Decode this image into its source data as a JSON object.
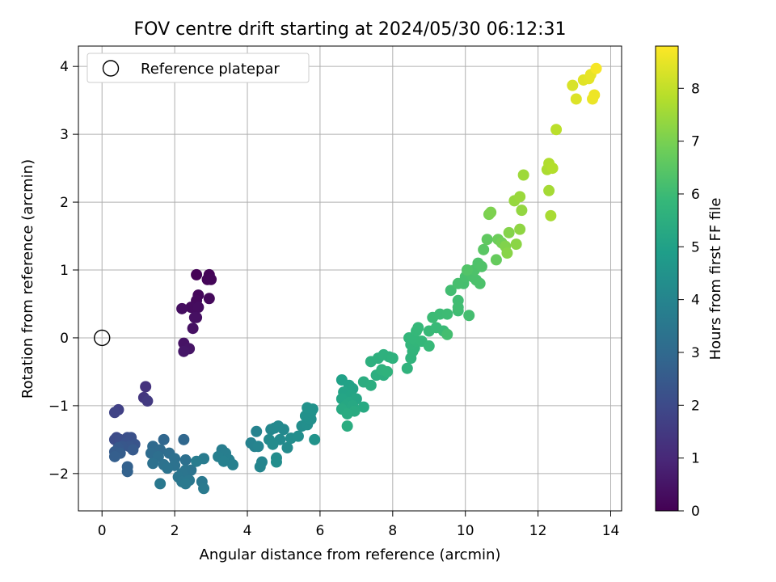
{
  "chart_data": {
    "type": "scatter",
    "title": "FOV centre drift starting at 2024/05/30 06:12:31",
    "xlabel": "Angular distance from reference (arcmin)",
    "ylabel": "Rotation from reference (arcmin)",
    "xlim": [
      -0.65,
      14.3
    ],
    "ylim": [
      -2.55,
      4.3
    ],
    "xticks": [
      0,
      2,
      4,
      6,
      8,
      10,
      12,
      14
    ],
    "yticks": [
      -2,
      -1,
      0,
      1,
      2,
      3,
      4
    ],
    "grid": true,
    "legend": {
      "position": "top-left",
      "entries": [
        "Reference platepar"
      ]
    },
    "reference_point": {
      "x": 0,
      "y": 0
    },
    "colorbar": {
      "label": "Hours from first FF file",
      "range": [
        0,
        8.8
      ],
      "ticks": [
        0,
        1,
        2,
        3,
        4,
        5,
        6,
        7,
        8
      ],
      "colormap": "viridis"
    },
    "colormap_stops": [
      "#440154",
      "#482878",
      "#3e4989",
      "#31688e",
      "#26828e",
      "#1f9e89",
      "#35b779",
      "#6ece58",
      "#b5de2b",
      "#fde725"
    ],
    "series": [
      {
        "points": [
          [
            2.6,
            0.93,
            0.05
          ],
          [
            2.95,
            0.93,
            0.08
          ],
          [
            2.9,
            0.86,
            0.1
          ],
          [
            3.0,
            0.86,
            0.12
          ],
          [
            2.65,
            0.63,
            0.18
          ],
          [
            2.95,
            0.58,
            0.2
          ],
          [
            2.6,
            0.55,
            0.22
          ],
          [
            2.55,
            0.45,
            0.25
          ],
          [
            2.45,
            0.45,
            0.28
          ],
          [
            2.65,
            0.45,
            0.3
          ],
          [
            2.2,
            0.43,
            0.33
          ],
          [
            2.6,
            0.3,
            0.35
          ],
          [
            2.55,
            0.3,
            0.38
          ],
          [
            2.5,
            0.14,
            0.4
          ],
          [
            2.25,
            -0.08,
            0.45
          ],
          [
            2.4,
            -0.16,
            0.5
          ],
          [
            2.25,
            -0.2,
            0.55
          ],
          [
            1.2,
            -0.72,
            1.3
          ],
          [
            1.15,
            -0.88,
            1.4
          ],
          [
            1.25,
            -0.93,
            1.5
          ],
          [
            0.45,
            -1.06,
            1.7
          ],
          [
            0.35,
            -1.1,
            1.8
          ],
          [
            0.4,
            -1.47,
            2.0
          ],
          [
            0.35,
            -1.5,
            2.05
          ],
          [
            0.5,
            -1.5,
            2.1
          ],
          [
            0.7,
            -1.47,
            2.15
          ],
          [
            0.8,
            -1.47,
            2.2
          ],
          [
            0.65,
            -1.55,
            2.25
          ],
          [
            0.9,
            -1.57,
            2.3
          ],
          [
            0.75,
            -1.6,
            2.35
          ],
          [
            0.55,
            -1.6,
            2.4
          ],
          [
            0.45,
            -1.62,
            2.45
          ],
          [
            0.85,
            -1.65,
            2.5
          ],
          [
            0.35,
            -1.68,
            2.55
          ],
          [
            0.5,
            -1.7,
            2.6
          ],
          [
            0.35,
            -1.75,
            2.65
          ],
          [
            0.7,
            -1.9,
            2.7
          ],
          [
            0.7,
            -1.97,
            2.75
          ],
          [
            1.7,
            -1.5,
            2.9
          ],
          [
            2.25,
            -1.5,
            2.95
          ],
          [
            1.4,
            -1.6,
            3.0
          ],
          [
            1.6,
            -1.65,
            3.05
          ],
          [
            1.35,
            -1.7,
            3.1
          ],
          [
            1.85,
            -1.7,
            3.15
          ],
          [
            1.55,
            -1.75,
            3.2
          ],
          [
            2.0,
            -1.78,
            3.22
          ],
          [
            2.3,
            -1.8,
            3.25
          ],
          [
            1.4,
            -1.85,
            3.28
          ],
          [
            1.7,
            -1.87,
            3.3
          ],
          [
            2.0,
            -1.88,
            3.32
          ],
          [
            1.8,
            -1.92,
            3.35
          ],
          [
            2.3,
            -1.95,
            3.38
          ],
          [
            2.45,
            -1.95,
            3.4
          ],
          [
            2.2,
            -2.0,
            3.42
          ],
          [
            2.1,
            -2.05,
            3.45
          ],
          [
            2.4,
            -2.1,
            3.48
          ],
          [
            2.2,
            -2.12,
            3.5
          ],
          [
            2.75,
            -2.12,
            3.52
          ],
          [
            1.6,
            -2.15,
            3.55
          ],
          [
            2.3,
            -2.15,
            3.57
          ],
          [
            2.8,
            -2.22,
            3.6
          ],
          [
            2.8,
            -1.78,
            3.65
          ],
          [
            2.6,
            -1.82,
            3.7
          ],
          [
            3.3,
            -1.65,
            3.72
          ],
          [
            3.4,
            -1.7,
            3.75
          ],
          [
            3.2,
            -1.75,
            3.78
          ],
          [
            3.5,
            -1.8,
            3.8
          ],
          [
            3.35,
            -1.82,
            3.83
          ],
          [
            3.6,
            -1.87,
            3.85
          ],
          [
            4.1,
            -1.55,
            3.9
          ],
          [
            4.2,
            -1.6,
            3.92
          ],
          [
            4.25,
            -1.38,
            3.95
          ],
          [
            4.3,
            -1.6,
            3.97
          ],
          [
            4.4,
            -1.83,
            4.0
          ],
          [
            4.35,
            -1.9,
            4.02
          ],
          [
            4.65,
            -1.35,
            4.1
          ],
          [
            4.75,
            -1.33,
            4.12
          ],
          [
            4.85,
            -1.3,
            4.14
          ],
          [
            5.0,
            -1.35,
            4.16
          ],
          [
            4.6,
            -1.5,
            4.18
          ],
          [
            4.9,
            -1.5,
            4.2
          ],
          [
            4.7,
            -1.57,
            4.22
          ],
          [
            5.1,
            -1.62,
            4.24
          ],
          [
            4.8,
            -1.77,
            4.26
          ],
          [
            4.8,
            -1.83,
            4.28
          ],
          [
            5.2,
            -1.48,
            4.3
          ],
          [
            5.4,
            -1.45,
            4.32
          ],
          [
            5.5,
            -1.3,
            4.34
          ],
          [
            5.65,
            -1.28,
            4.36
          ],
          [
            5.65,
            -1.2,
            4.38
          ],
          [
            5.75,
            -1.2,
            4.4
          ],
          [
            5.6,
            -1.15,
            4.42
          ],
          [
            5.75,
            -1.1,
            4.44
          ],
          [
            5.8,
            -1.05,
            4.46
          ],
          [
            5.65,
            -1.03,
            4.48
          ],
          [
            5.85,
            -1.5,
            4.5
          ],
          [
            6.6,
            -0.62,
            5.0
          ],
          [
            6.8,
            -0.7,
            5.03
          ],
          [
            6.9,
            -0.75,
            5.06
          ],
          [
            6.65,
            -0.8,
            5.09
          ],
          [
            6.85,
            -0.85,
            5.12
          ],
          [
            6.6,
            -0.9,
            5.15
          ],
          [
            7.0,
            -0.9,
            5.18
          ],
          [
            6.8,
            -0.95,
            5.21
          ],
          [
            6.7,
            -1.0,
            5.24
          ],
          [
            6.9,
            -1.0,
            5.27
          ],
          [
            7.2,
            -1.02,
            5.3
          ],
          [
            6.6,
            -1.05,
            5.33
          ],
          [
            6.95,
            -1.08,
            5.36
          ],
          [
            6.75,
            -1.12,
            5.39
          ],
          [
            6.75,
            -1.3,
            5.42
          ],
          [
            7.2,
            -0.65,
            5.45
          ],
          [
            7.4,
            -0.7,
            5.48
          ],
          [
            7.55,
            -0.55,
            5.5
          ],
          [
            7.75,
            -0.55,
            5.52
          ],
          [
            7.4,
            -0.35,
            5.54
          ],
          [
            7.6,
            -0.3,
            5.56
          ],
          [
            7.75,
            -0.25,
            5.58
          ],
          [
            7.9,
            -0.28,
            5.6
          ],
          [
            8.0,
            -0.3,
            5.62
          ],
          [
            7.7,
            -0.47,
            5.64
          ],
          [
            7.85,
            -0.5,
            5.66
          ],
          [
            8.4,
            -0.45,
            5.68
          ],
          [
            8.5,
            -0.3,
            5.7
          ],
          [
            8.55,
            -0.2,
            5.72
          ],
          [
            8.6,
            -0.15,
            5.74
          ],
          [
            8.5,
            -0.1,
            5.76
          ],
          [
            8.65,
            -0.05,
            5.78
          ],
          [
            8.45,
            0.0,
            5.8
          ],
          [
            8.55,
            0.0,
            5.82
          ],
          [
            8.8,
            -0.05,
            5.84
          ],
          [
            8.65,
            0.1,
            5.86
          ],
          [
            8.7,
            0.15,
            5.88
          ],
          [
            9.0,
            -0.12,
            5.9
          ],
          [
            9.0,
            0.1,
            5.92
          ],
          [
            9.2,
            0.15,
            5.94
          ],
          [
            9.4,
            0.1,
            5.96
          ],
          [
            9.1,
            0.3,
            5.98
          ],
          [
            9.3,
            0.35,
            6.0
          ],
          [
            9.5,
            0.35,
            6.02
          ],
          [
            9.8,
            0.4,
            6.04
          ],
          [
            9.8,
            0.55,
            6.06
          ],
          [
            9.8,
            0.45,
            6.08
          ],
          [
            9.6,
            0.7,
            6.1
          ],
          [
            9.5,
            0.05,
            6.12
          ],
          [
            10.1,
            0.33,
            6.14
          ],
          [
            9.95,
            0.8,
            6.16
          ],
          [
            9.8,
            0.8,
            6.18
          ],
          [
            10.0,
            0.9,
            6.2
          ],
          [
            10.1,
            0.95,
            6.22
          ],
          [
            10.2,
            0.9,
            6.24
          ],
          [
            10.3,
            0.85,
            6.26
          ],
          [
            10.4,
            0.8,
            6.28
          ],
          [
            10.25,
            1.0,
            6.3
          ],
          [
            10.35,
            1.1,
            6.32
          ],
          [
            10.45,
            1.05,
            6.34
          ],
          [
            10.05,
            1.0,
            6.36
          ],
          [
            10.5,
            1.3,
            6.5
          ],
          [
            10.6,
            1.45,
            6.6
          ],
          [
            10.85,
            1.15,
            6.7
          ],
          [
            10.9,
            1.45,
            6.8
          ],
          [
            11.0,
            1.4,
            6.9
          ],
          [
            10.65,
            1.82,
            7.0
          ],
          [
            10.7,
            1.85,
            7.05
          ],
          [
            11.1,
            1.35,
            7.1
          ],
          [
            11.2,
            1.55,
            7.15
          ],
          [
            11.15,
            1.25,
            7.2
          ],
          [
            11.4,
            1.38,
            7.25
          ],
          [
            11.5,
            1.6,
            7.3
          ],
          [
            11.55,
            1.88,
            7.35
          ],
          [
            11.35,
            2.02,
            7.4
          ],
          [
            11.5,
            2.08,
            7.45
          ],
          [
            11.6,
            2.4,
            7.5
          ],
          [
            12.3,
            2.17,
            7.6
          ],
          [
            12.35,
            1.8,
            7.65
          ],
          [
            12.25,
            2.48,
            7.7
          ],
          [
            12.3,
            2.57,
            7.75
          ],
          [
            12.4,
            2.5,
            7.8
          ],
          [
            12.5,
            3.07,
            7.9
          ],
          [
            12.95,
            3.72,
            8.3
          ],
          [
            13.05,
            3.52,
            8.35
          ],
          [
            13.25,
            3.8,
            8.4
          ],
          [
            13.4,
            3.82,
            8.45
          ],
          [
            13.45,
            3.88,
            8.5
          ],
          [
            13.5,
            3.52,
            8.55
          ],
          [
            13.55,
            3.58,
            8.6
          ],
          [
            13.6,
            3.97,
            8.7
          ]
        ]
      }
    ]
  }
}
